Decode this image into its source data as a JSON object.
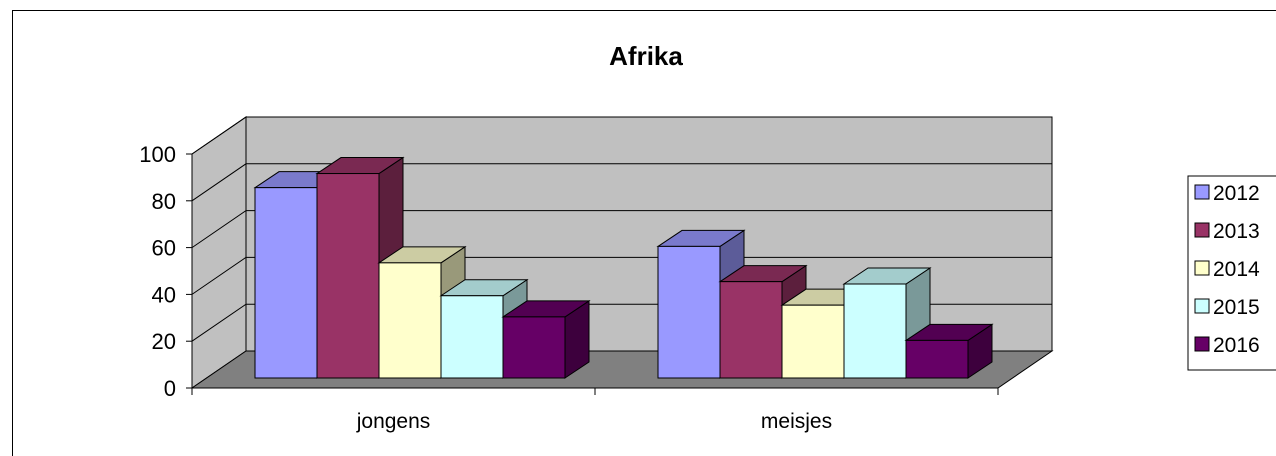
{
  "chart_data": {
    "type": "bar",
    "title": "Afrika",
    "categories": [
      "jongens",
      "meisjes"
    ],
    "ylim": [
      0,
      100
    ],
    "yticks": [
      0,
      20,
      40,
      60,
      80,
      100
    ],
    "grid": true,
    "legend_position": "right",
    "series": [
      {
        "name": "2012",
        "values": [
          81,
          56
        ],
        "color": "#9999ff"
      },
      {
        "name": "2013",
        "values": [
          87,
          41
        ],
        "color": "#993366"
      },
      {
        "name": "2014",
        "values": [
          49,
          31
        ],
        "color": "#ffffcc"
      },
      {
        "name": "2015",
        "values": [
          35,
          40
        ],
        "color": "#ccffff"
      },
      {
        "name": "2016",
        "values": [
          26,
          16
        ],
        "color": "#660066"
      }
    ]
  }
}
